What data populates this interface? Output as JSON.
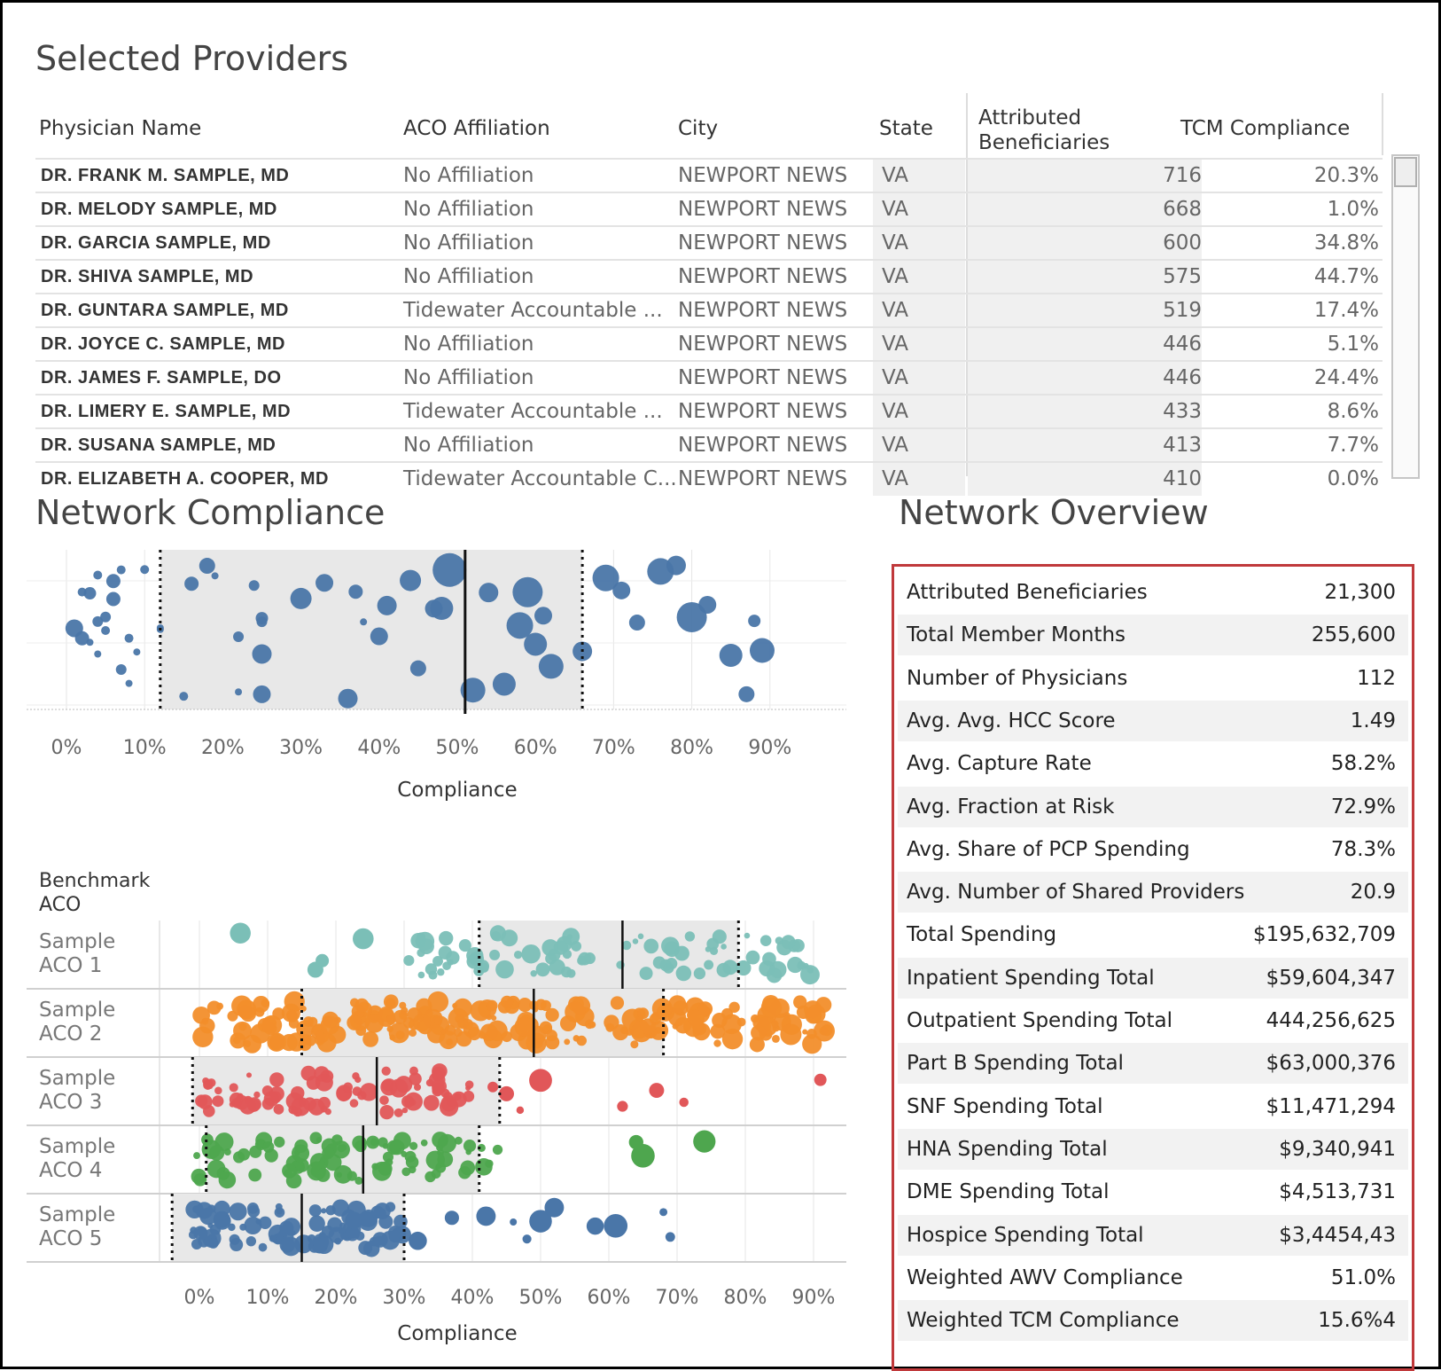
{
  "sections": {
    "providers_title": "Selected Providers",
    "compliance_title": "Network Compliance",
    "overview_title": "Network Overview"
  },
  "table": {
    "headers": {
      "name": "Physician Name",
      "aco": "ACO Affiliation",
      "city": "City",
      "state": "State",
      "beneficiaries_1": "Attributed",
      "beneficiaries_2": "Beneficiaries",
      "tcm": "TCM Compliance"
    },
    "rows": [
      {
        "name": "DR. FRANK M. SAMPLE, MD",
        "aco": "No Affiliation",
        "city": "NEWPORT NEWS",
        "state": "VA",
        "beneficiaries": "716",
        "tcm": "20.3%"
      },
      {
        "name": "DR. MELODY SAMPLE, MD",
        "aco": "No Affiliation",
        "city": "NEWPORT NEWS",
        "state": "VA",
        "beneficiaries": "668",
        "tcm": "1.0%"
      },
      {
        "name": "DR. GARCIA SAMPLE, MD",
        "aco": "No Affiliation",
        "city": "NEWPORT NEWS",
        "state": "VA",
        "beneficiaries": "600",
        "tcm": "34.8%"
      },
      {
        "name": "DR. SHIVA SAMPLE, MD",
        "aco": "No Affiliation",
        "city": "NEWPORT NEWS",
        "state": "VA",
        "beneficiaries": "575",
        "tcm": "44.7%"
      },
      {
        "name": "DR. GUNTARA SAMPLE, MD",
        "aco": "Tidewater Accountable ...",
        "city": "NEWPORT NEWS",
        "state": "VA",
        "beneficiaries": "519",
        "tcm": "17.4%"
      },
      {
        "name": "DR. JOYCE C. SAMPLE, MD",
        "aco": "No Affiliation",
        "city": "NEWPORT NEWS",
        "state": "VA",
        "beneficiaries": "446",
        "tcm": "5.1%"
      },
      {
        "name": "DR. JAMES F. SAMPLE, DO",
        "aco": "No Affiliation",
        "city": "NEWPORT NEWS",
        "state": "VA",
        "beneficiaries": "446",
        "tcm": "24.4%"
      },
      {
        "name": "DR. LIMERY E. SAMPLE, MD",
        "aco": "Tidewater Accountable ...",
        "city": "NEWPORT NEWS",
        "state": "VA",
        "beneficiaries": "433",
        "tcm": "8.6%"
      },
      {
        "name": "DR. SUSANA SAMPLE, MD",
        "aco": "No Affiliation",
        "city": "NEWPORT NEWS",
        "state": "VA",
        "beneficiaries": "413",
        "tcm": "7.7%"
      },
      {
        "name": "DR. ELIZABETH A. COOPER, MD",
        "aco": "Tidewater Accountable C...",
        "city": "NEWPORT NEWS",
        "state": "VA",
        "beneficiaries": "410",
        "tcm": "0.0%"
      }
    ]
  },
  "overview": [
    {
      "label": "Attributed Beneficiaries",
      "value": "21,300"
    },
    {
      "label": "Total Member Months",
      "value": "255,600"
    },
    {
      "label": "Number of Physicians",
      "value": "112"
    },
    {
      "label": "Avg. Avg. HCC Score",
      "value": "1.49"
    },
    {
      "label": "Avg. Capture Rate",
      "value": "58.2%"
    },
    {
      "label": "Avg. Fraction at Risk",
      "value": "72.9%"
    },
    {
      "label": "Avg. Share of PCP Spending",
      "value": "78.3%"
    },
    {
      "label": "Avg. Number of Shared Providers",
      "value": "20.9"
    },
    {
      "label": "Total Spending",
      "value": "$195,632,709"
    },
    {
      "label": "Inpatient Spending Total",
      "value": "$59,604,347"
    },
    {
      "label": "Outpatient Spending Total",
      "value": "444,256,625"
    },
    {
      "label": "Part B Spending Total",
      "value": "$63,000,376"
    },
    {
      "label": "SNF Spending Total",
      "value": "$11,471,294"
    },
    {
      "label": "HNA Spending Total",
      "value": "$9,340,941"
    },
    {
      "label": "DME Spending Total",
      "value": "$4,513,731"
    },
    {
      "label": "Hospice Spending Total",
      "value": "$3,4454,43"
    },
    {
      "label": "Weighted AWV Compliance",
      "value": "51.0%"
    },
    {
      "label": "Weighted TCM Compliance",
      "value": "15.6%4"
    }
  ],
  "benchmark_label": [
    "Benchmark",
    "ACO"
  ],
  "colors": {
    "network": "#4a76a8",
    "aco1": "#7bbfb7",
    "aco2": "#f28e2b",
    "aco3": "#e15759",
    "aco4": "#4ea64e",
    "aco5": "#4a76a8",
    "band": "#e8e8e8",
    "overview_border": "#c0393b"
  },
  "chart_data": [
    {
      "type": "scatter",
      "title": "Network Compliance",
      "xlabel": "Compliance",
      "xlim": [
        -3,
        100
      ],
      "x_ticks": [
        "0%",
        "10%",
        "20%",
        "30%",
        "40%",
        "50%",
        "60%",
        "70%",
        "80%",
        "90%"
      ],
      "x_tick_values": [
        0,
        10,
        20,
        30,
        40,
        50,
        60,
        70,
        80,
        90
      ],
      "median": 51,
      "band": [
        12,
        66
      ],
      "series": [
        {
          "points": [
            {
              "x": 1,
              "r": 10
            },
            {
              "x": 2,
              "r": 8
            },
            {
              "x": 4,
              "r": 5
            },
            {
              "x": 3,
              "r": 7
            },
            {
              "x": 4,
              "r": 6
            },
            {
              "x": 5,
              "r": 5
            },
            {
              "x": 7,
              "r": 5
            },
            {
              "x": 8,
              "r": 4
            },
            {
              "x": 3,
              "r": 4
            },
            {
              "x": 5,
              "r": 6
            },
            {
              "x": 6,
              "r": 8
            },
            {
              "x": 7,
              "r": 6
            },
            {
              "x": 9,
              "r": 4
            },
            {
              "x": 10,
              "r": 5
            },
            {
              "x": 12,
              "r": 4
            },
            {
              "x": 2,
              "r": 5
            },
            {
              "x": 4,
              "r": 4
            },
            {
              "x": 6,
              "r": 8
            },
            {
              "x": 8,
              "r": 5
            },
            {
              "x": 12,
              "r": 4
            },
            {
              "x": 16,
              "r": 8
            },
            {
              "x": 18,
              "r": 9
            },
            {
              "x": 22,
              "r": 4
            },
            {
              "x": 15,
              "r": 5
            },
            {
              "x": 19,
              "r": 4
            },
            {
              "x": 25,
              "r": 6
            },
            {
              "x": 25,
              "r": 10
            },
            {
              "x": 24,
              "r": 6
            },
            {
              "x": 25,
              "r": 7
            },
            {
              "x": 22,
              "r": 6
            },
            {
              "x": 25,
              "r": 11
            },
            {
              "x": 30,
              "r": 12
            },
            {
              "x": 33,
              "r": 10
            },
            {
              "x": 36,
              "r": 11
            },
            {
              "x": 38,
              "r": 4
            },
            {
              "x": 37,
              "r": 8
            },
            {
              "x": 40,
              "r": 10
            },
            {
              "x": 41,
              "r": 11
            },
            {
              "x": 44,
              "r": 12
            },
            {
              "x": 45,
              "r": 9
            },
            {
              "x": 47,
              "r": 10
            },
            {
              "x": 48,
              "r": 13
            },
            {
              "x": 49,
              "r": 19
            },
            {
              "x": 52,
              "r": 14
            },
            {
              "x": 54,
              "r": 11
            },
            {
              "x": 56,
              "r": 13
            },
            {
              "x": 58,
              "r": 15
            },
            {
              "x": 59,
              "r": 17
            },
            {
              "x": 60,
              "r": 13
            },
            {
              "x": 61,
              "r": 10
            },
            {
              "x": 62,
              "r": 14
            },
            {
              "x": 66,
              "r": 11
            },
            {
              "x": 69,
              "r": 15
            },
            {
              "x": 71,
              "r": 10
            },
            {
              "x": 73,
              "r": 9
            },
            {
              "x": 76,
              "r": 15
            },
            {
              "x": 78,
              "r": 11
            },
            {
              "x": 80,
              "r": 17
            },
            {
              "x": 85,
              "r": 13
            },
            {
              "x": 89,
              "r": 14
            },
            {
              "x": 87,
              "r": 9
            },
            {
              "x": 82,
              "r": 10
            },
            {
              "x": 88,
              "r": 7
            }
          ]
        }
      ]
    },
    {
      "type": "scatter",
      "xlabel": "Compliance",
      "x_ticks": [
        "0%",
        "10%",
        "20%",
        "30%",
        "40%",
        "50%",
        "60%",
        "70%",
        "80%",
        "90%"
      ],
      "x_tick_values": [
        0,
        10,
        20,
        30,
        40,
        50,
        60,
        70,
        80,
        90
      ],
      "xlim": [
        -3,
        93
      ],
      "categories": [
        "Sample ACO 1",
        "Sample ACO 2",
        "Sample ACO 3",
        "Sample ACO 4",
        "Sample ACO 5"
      ],
      "category_lines": [
        [
          "Sample",
          "ACO 1"
        ],
        [
          "Sample",
          "ACO 2"
        ],
        [
          "Sample",
          "ACO 3"
        ],
        [
          "Sample",
          "ACO 4"
        ],
        [
          "Sample",
          "ACO 5"
        ]
      ],
      "series": [
        {
          "name": "Sample ACO 1",
          "median": 62,
          "band": [
            41,
            79
          ],
          "x_range": [
            30,
            90
          ],
          "extra": [
            6,
            17,
            18,
            24
          ]
        },
        {
          "name": "Sample ACO 2",
          "median": 49,
          "band": [
            15,
            68
          ],
          "x_range": [
            0,
            92
          ],
          "extra": []
        },
        {
          "name": "Sample ACO 3",
          "median": 26,
          "band": [
            -1,
            44
          ],
          "x_range": [
            0,
            40
          ],
          "extra": [
            43,
            45,
            47,
            50,
            62,
            67,
            71,
            91
          ]
        },
        {
          "name": "Sample ACO 4",
          "median": 24,
          "band": [
            1,
            41
          ],
          "x_range": [
            -1,
            44
          ],
          "extra": [
            64,
            65,
            74
          ]
        },
        {
          "name": "Sample ACO 5",
          "median": 15,
          "band": [
            -4,
            30
          ],
          "x_range": [
            -1,
            30
          ],
          "extra": [
            32,
            37,
            42,
            46,
            48,
            50,
            52,
            58,
            61,
            68,
            69
          ]
        }
      ]
    }
  ]
}
